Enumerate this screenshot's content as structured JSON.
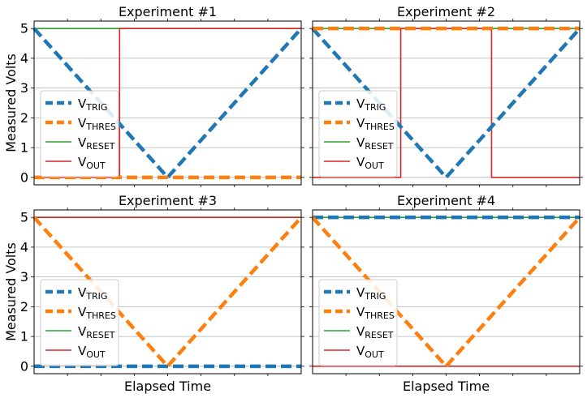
{
  "chart_data": [
    {
      "type": "line",
      "title": "Experiment #1",
      "ylabel": "Measured Volts",
      "xlabel": "",
      "ylim": [
        -0.25,
        5.25
      ],
      "yticks": [
        0,
        1,
        2,
        3,
        4,
        5
      ],
      "grid": "horizontal",
      "legend_position": "lower-left",
      "series": [
        {
          "name": "V",
          "sub": "TRIG",
          "color": "#1f77b4",
          "style": "dashed",
          "x": [
            0,
            0.5,
            1
          ],
          "y": [
            5,
            0,
            5
          ]
        },
        {
          "name": "V",
          "sub": "THRES",
          "color": "#ff7f0e",
          "style": "dashed",
          "x": [
            0,
            1
          ],
          "y": [
            0,
            0
          ]
        },
        {
          "name": "V",
          "sub": "RESET",
          "color": "#2ca02c",
          "style": "solid",
          "x": [
            0,
            1
          ],
          "y": [
            5,
            5
          ]
        },
        {
          "name": "V",
          "sub": "OUT",
          "color": "#d62728",
          "style": "solid",
          "x": [
            0,
            0.32,
            0.32,
            1
          ],
          "y": [
            0,
            0,
            5,
            5
          ]
        }
      ]
    },
    {
      "type": "line",
      "title": "Experiment #2",
      "ylabel": "",
      "xlabel": "",
      "ylim": [
        -0.25,
        5.25
      ],
      "yticks": [
        0,
        1,
        2,
        3,
        4,
        5
      ],
      "grid": "horizontal",
      "legend_position": "lower-left",
      "series": [
        {
          "name": "V",
          "sub": "TRIG",
          "color": "#1f77b4",
          "style": "dashed",
          "x": [
            0,
            0.5,
            1
          ],
          "y": [
            5,
            0,
            5
          ]
        },
        {
          "name": "V",
          "sub": "THRES",
          "color": "#ff7f0e",
          "style": "dashed",
          "x": [
            0,
            1
          ],
          "y": [
            5,
            5
          ]
        },
        {
          "name": "V",
          "sub": "RESET",
          "color": "#2ca02c",
          "style": "solid",
          "x": [
            0,
            1
          ],
          "y": [
            5,
            5
          ]
        },
        {
          "name": "V",
          "sub": "OUT",
          "color": "#d62728",
          "style": "solid",
          "x": [
            0,
            0.33,
            0.33,
            0.67,
            0.67,
            1
          ],
          "y": [
            0,
            0,
            5,
            5,
            0,
            0
          ]
        }
      ]
    },
    {
      "type": "line",
      "title": "Experiment #3",
      "ylabel": "Measured Volts",
      "xlabel": "Elapsed Time",
      "ylim": [
        -0.25,
        5.25
      ],
      "yticks": [
        0,
        1,
        2,
        3,
        4,
        5
      ],
      "grid": "horizontal",
      "legend_position": "lower-left",
      "series": [
        {
          "name": "V",
          "sub": "TRIG",
          "color": "#1f77b4",
          "style": "dashed",
          "x": [
            0,
            1
          ],
          "y": [
            0,
            0
          ]
        },
        {
          "name": "V",
          "sub": "THRES",
          "color": "#ff7f0e",
          "style": "dashed",
          "x": [
            0,
            0.5,
            1
          ],
          "y": [
            5,
            0,
            5
          ]
        },
        {
          "name": "V",
          "sub": "RESET",
          "color": "#2ca02c",
          "style": "solid",
          "x": [
            0,
            1
          ],
          "y": [
            5,
            5
          ]
        },
        {
          "name": "V",
          "sub": "OUT",
          "color": "#d62728",
          "style": "solid",
          "x": [
            0,
            1
          ],
          "y": [
            5,
            5
          ]
        }
      ]
    },
    {
      "type": "line",
      "title": "Experiment #4",
      "ylabel": "",
      "xlabel": "Elapsed Time",
      "ylim": [
        -0.25,
        5.25
      ],
      "yticks": [
        0,
        1,
        2,
        3,
        4,
        5
      ],
      "grid": "horizontal",
      "legend_position": "lower-left",
      "series": [
        {
          "name": "V",
          "sub": "TRIG",
          "color": "#1f77b4",
          "style": "dashed",
          "x": [
            0,
            1
          ],
          "y": [
            5,
            5
          ]
        },
        {
          "name": "V",
          "sub": "THRES",
          "color": "#ff7f0e",
          "style": "dashed",
          "x": [
            0,
            0.5,
            1
          ],
          "y": [
            5,
            0,
            5
          ]
        },
        {
          "name": "V",
          "sub": "RESET",
          "color": "#2ca02c",
          "style": "solid",
          "x": [
            0,
            1
          ],
          "y": [
            5,
            5
          ]
        },
        {
          "name": "V",
          "sub": "OUT",
          "color": "#d62728",
          "style": "solid",
          "x": [
            0,
            1
          ],
          "y": [
            0,
            0
          ]
        }
      ]
    }
  ]
}
